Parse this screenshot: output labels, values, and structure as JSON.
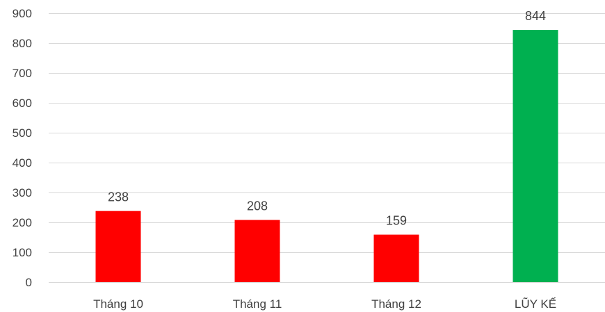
{
  "chart_data": {
    "type": "bar",
    "categories": [
      "Tháng 10",
      "Tháng 11",
      "Tháng 12",
      "LŨY KẾ"
    ],
    "values": [
      238,
      208,
      159,
      844
    ],
    "bar_colors": [
      "#ff0000",
      "#ff0000",
      "#ff0000",
      "#00b050"
    ],
    "data_labels": [
      "238",
      "208",
      "159",
      "844"
    ],
    "yticks": [
      0,
      100,
      200,
      300,
      400,
      500,
      600,
      700,
      800,
      900
    ],
    "ylim": [
      0,
      900
    ],
    "grid": true,
    "legend": "none",
    "title": "",
    "xlabel": "",
    "ylabel": ""
  }
}
